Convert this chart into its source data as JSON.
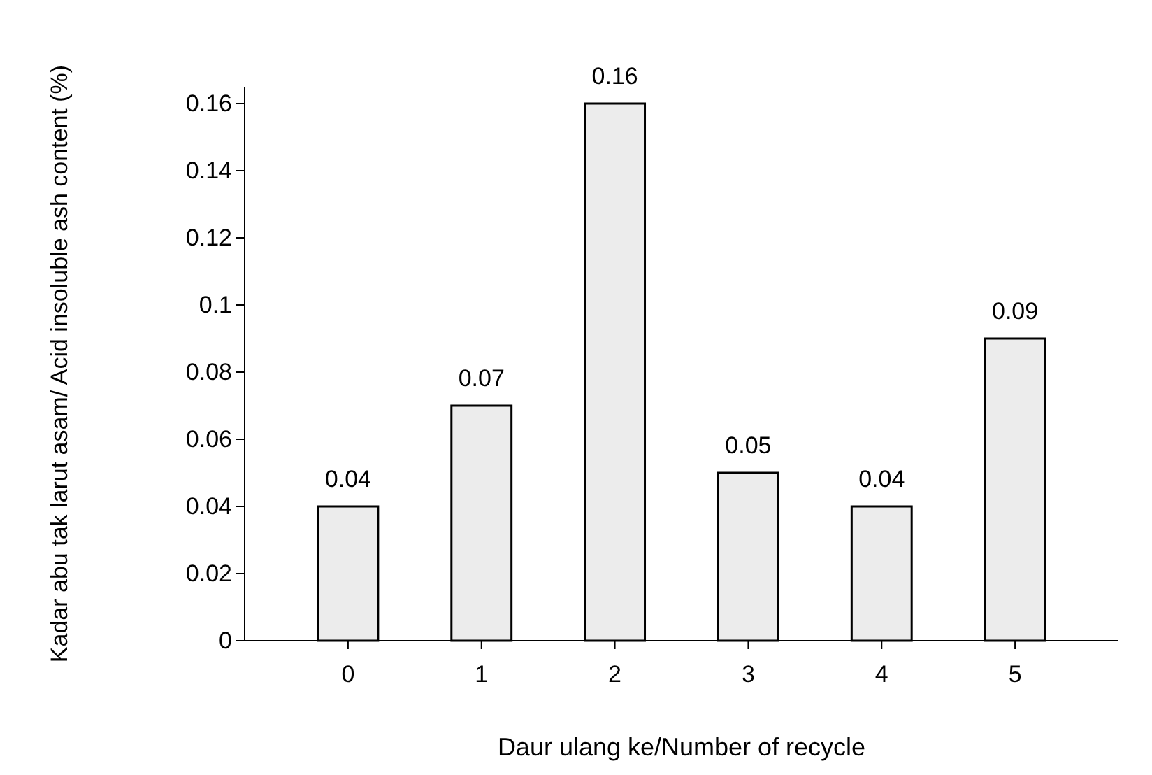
{
  "chart_data": {
    "type": "bar",
    "xlabel": "Daur ulang ke/Number of recycle",
    "ylabel": "Kadar abu tak larut asam/ Acid insoluble ash content  (%)",
    "categories": [
      "0",
      "1",
      "2",
      "3",
      "4",
      "5"
    ],
    "values": [
      0.04,
      0.07,
      0.16,
      0.05,
      0.04,
      0.09
    ],
    "color": "#ececec",
    "data_labels": true,
    "grid": false,
    "ylim": [
      0,
      0.165
    ],
    "yticks": [
      0,
      0.02,
      0.04,
      0.06,
      0.08,
      0.1,
      0.12,
      0.14,
      0.16
    ]
  }
}
